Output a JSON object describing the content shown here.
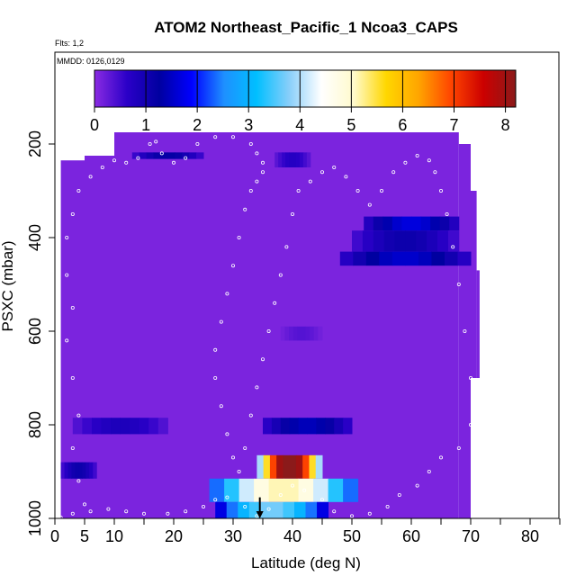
{
  "chart_data": {
    "type": "heatmap",
    "title": "ATOM2 Northeast_Pacific_1 Ncoa3_CAPS",
    "subtitle_flts": "Flts: 1,2",
    "subtitle_mmdd": "MMDD: 0126,0129",
    "xlabel": "Latitude (deg N)",
    "ylabel": "PSXC (mbar)",
    "xlim": [
      0,
      85
    ],
    "ylim": [
      1000,
      100
    ],
    "x_ticks": [
      0,
      5,
      10,
      20,
      30,
      40,
      50,
      60,
      70,
      80
    ],
    "y_ticks": [
      200,
      400,
      600,
      800,
      1000
    ],
    "colorbar": {
      "range": [
        0,
        8.2
      ],
      "ticks": [
        0,
        1,
        2,
        3,
        4,
        5,
        6,
        7,
        8
      ],
      "colors": [
        "#8a2be2",
        "#2b00c8",
        "#0000a0",
        "#0000ff",
        "#1e90ff",
        "#00bfff",
        "#87cefa",
        "#ffffff",
        "#fffacd",
        "#ffd700",
        "#ffa500",
        "#ff4500",
        "#cc0000",
        "#8b1a1a"
      ]
    },
    "background_value": 0.1,
    "coverage": [
      {
        "lat": [
          1,
          5
        ],
        "p": [
          235,
          1000
        ]
      },
      {
        "lat": [
          5,
          10
        ],
        "p": [
          225,
          1000
        ]
      },
      {
        "lat": [
          10,
          15
        ],
        "p": [
          175,
          1000
        ]
      },
      {
        "lat": [
          15,
          55
        ],
        "p": [
          175,
          1000
        ]
      },
      {
        "lat": [
          55,
          68
        ],
        "p": [
          175,
          1000
        ]
      },
      {
        "lat": [
          68,
          70
        ],
        "p": [
          200,
          1000
        ]
      },
      {
        "lat": [
          70,
          71
        ],
        "p": [
          300,
          700
        ]
      },
      {
        "lat": [
          71,
          71.5
        ],
        "p": [
          470,
          700
        ]
      }
    ],
    "features": [
      {
        "lat": [
          13,
          25
        ],
        "p": [
          218,
          232
        ],
        "value": 1.0
      },
      {
        "lat": [
          37,
          43
        ],
        "p": [
          218,
          250
        ],
        "value": 0.6
      },
      {
        "lat": [
          52,
          68
        ],
        "p": [
          355,
          385
        ],
        "value": 1.4
      },
      {
        "lat": [
          50,
          68
        ],
        "p": [
          385,
          430
        ],
        "value": 0.9
      },
      {
        "lat": [
          48,
          70
        ],
        "p": [
          430,
          460
        ],
        "value": 1.3
      },
      {
        "lat": [
          38,
          45
        ],
        "p": [
          590,
          620
        ],
        "value": 0.3
      },
      {
        "lat": [
          3,
          19
        ],
        "p": [
          785,
          820
        ],
        "value": 0.7
      },
      {
        "lat": [
          35,
          50
        ],
        "p": [
          785,
          820
        ],
        "value": 1.2
      },
      {
        "lat": [
          1,
          7
        ],
        "p": [
          880,
          915
        ],
        "value": 0.9
      },
      {
        "lat": [
          34,
          45
        ],
        "p": [
          865,
          915
        ],
        "value": 7.2
      },
      {
        "lat": [
          26,
          51
        ],
        "p": [
          915,
          965
        ],
        "value": 4.3
      },
      {
        "lat": [
          27,
          46
        ],
        "p": [
          965,
          1000
        ],
        "value": 3.1
      }
    ],
    "flight_track": [
      [
        1,
        998
      ],
      [
        3,
        990
      ],
      [
        6,
        985
      ],
      [
        9,
        980
      ],
      [
        12,
        985
      ],
      [
        15,
        990
      ],
      [
        19,
        990
      ],
      [
        22,
        985
      ],
      [
        25,
        975
      ],
      [
        27,
        960
      ],
      [
        29,
        955
      ],
      [
        32,
        975
      ],
      [
        34,
        995
      ],
      [
        36,
        980
      ],
      [
        38,
        950
      ],
      [
        40,
        930
      ],
      [
        42,
        940
      ],
      [
        45,
        960
      ],
      [
        47,
        985
      ],
      [
        50,
        995
      ],
      [
        53,
        990
      ],
      [
        56,
        975
      ],
      [
        58,
        950
      ],
      [
        61,
        930
      ],
      [
        63,
        900
      ],
      [
        65,
        870
      ],
      [
        68,
        850
      ],
      [
        70,
        800
      ],
      [
        70,
        700
      ],
      [
        69,
        600
      ],
      [
        68,
        500
      ],
      [
        67,
        420
      ],
      [
        66,
        350
      ],
      [
        65,
        300
      ],
      [
        64,
        260
      ],
      [
        63,
        235
      ],
      [
        61,
        225
      ],
      [
        59,
        240
      ],
      [
        57,
        260
      ],
      [
        55,
        300
      ],
      [
        53,
        330
      ],
      [
        51,
        300
      ],
      [
        49,
        270
      ],
      [
        47,
        250
      ],
      [
        45,
        260
      ],
      [
        43,
        280
      ],
      [
        41,
        300
      ],
      [
        40,
        350
      ],
      [
        39,
        420
      ],
      [
        38,
        480
      ],
      [
        37,
        540
      ],
      [
        36,
        600
      ],
      [
        35,
        660
      ],
      [
        34,
        720
      ],
      [
        33,
        780
      ],
      [
        32,
        850
      ],
      [
        31,
        900
      ],
      [
        30,
        870
      ],
      [
        29,
        820
      ],
      [
        28,
        760
      ],
      [
        27,
        700
      ],
      [
        27,
        640
      ],
      [
        28,
        580
      ],
      [
        29,
        520
      ],
      [
        30,
        460
      ],
      [
        31,
        400
      ],
      [
        32,
        340
      ],
      [
        33,
        300
      ],
      [
        34,
        280
      ],
      [
        35,
        260
      ],
      [
        35,
        240
      ],
      [
        34,
        220
      ],
      [
        33,
        200
      ],
      [
        30,
        185
      ],
      [
        27,
        185
      ],
      [
        24,
        200
      ],
      [
        22,
        230
      ],
      [
        20,
        240
      ],
      [
        18,
        220
      ],
      [
        17,
        195
      ],
      [
        16,
        200
      ],
      [
        14,
        230
      ],
      [
        12,
        240
      ],
      [
        10,
        235
      ],
      [
        8,
        250
      ],
      [
        6,
        270
      ],
      [
        4,
        300
      ],
      [
        3,
        350
      ],
      [
        2,
        400
      ],
      [
        2,
        480
      ],
      [
        3,
        550
      ],
      [
        2,
        620
      ],
      [
        3,
        700
      ],
      [
        4,
        780
      ],
      [
        3,
        850
      ],
      [
        4,
        920
      ],
      [
        5,
        970
      ]
    ],
    "arrow": {
      "lat": 34.5,
      "p_from": 955,
      "p_to": 1000
    }
  }
}
